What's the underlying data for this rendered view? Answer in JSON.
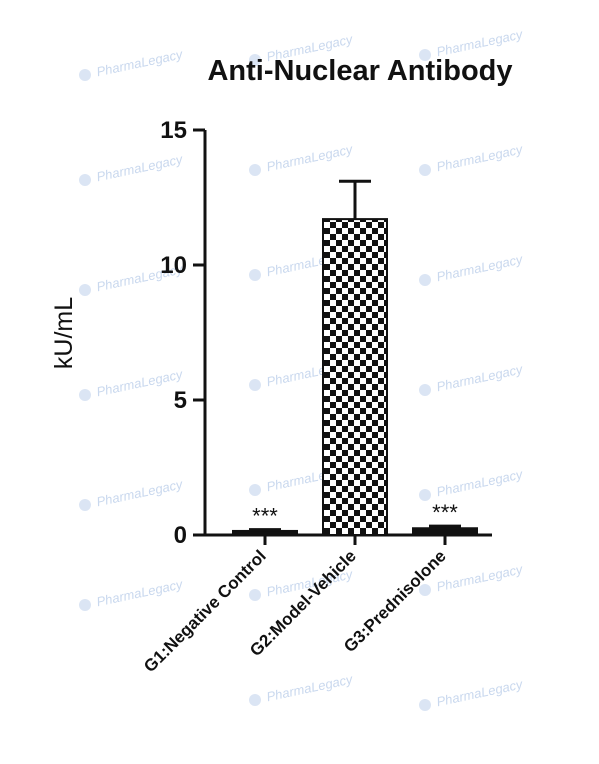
{
  "chart_data": {
    "type": "bar",
    "title": "Anti-Nuclear Antibody",
    "xlabel": "",
    "ylabel": "kU/mL",
    "ylim": [
      0,
      15
    ],
    "yticks": [
      "0",
      "5",
      "10",
      "15"
    ],
    "grid": false,
    "categories": [
      "G1:Negative Control",
      "G2:Model-Vehicle",
      "G3:Prednisolone"
    ],
    "values": [
      0.15,
      11.7,
      0.25
    ],
    "errors": [
      0.05,
      1.4,
      0.08
    ],
    "fill_patterns": [
      "solid",
      "checkerboard",
      "solid"
    ],
    "annotations": [
      "***",
      "",
      "***"
    ],
    "colors": {
      "bar_solid": "#111111",
      "checker_dark": "#111111",
      "checker_light": "#ffffff",
      "axis": "#111111"
    }
  },
  "watermark": {
    "text": "PharmaLegacy",
    "icon": "pharmalegacy-logo-icon"
  }
}
